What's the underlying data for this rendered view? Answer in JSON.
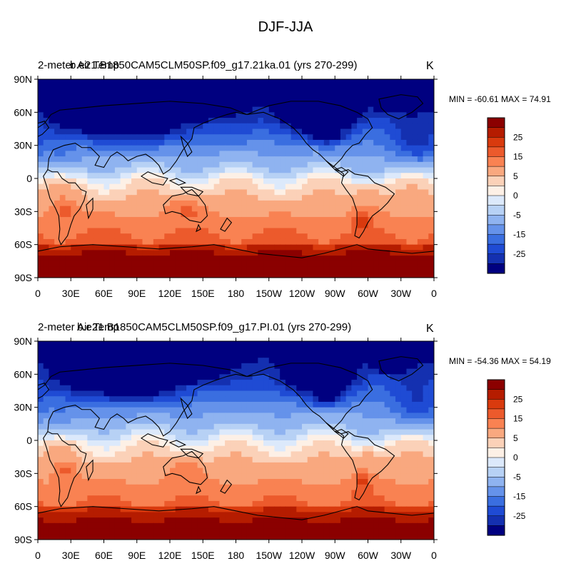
{
  "figure": {
    "title": "DJF-JJA",
    "units": "K",
    "lat_ticks": [
      "90N",
      "60N",
      "30N",
      "0",
      "30S",
      "60S",
      "90S"
    ],
    "lon_ticks": [
      "0",
      "30E",
      "60E",
      "90E",
      "120E",
      "150E",
      "180",
      "150W",
      "120W",
      "90W",
      "60W",
      "30W",
      "0"
    ],
    "colorbar": {
      "labels": [
        "25",
        "15",
        "5",
        "0",
        "-5",
        "-15",
        "-25"
      ],
      "colors": [
        "#8b0000",
        "#b51c00",
        "#d93a0e",
        "#ec5a2c",
        "#f98252",
        "#f9a87f",
        "#fbd1b8",
        "#fdf0e6",
        "#dce9fb",
        "#b7d1f5",
        "#8fb3f0",
        "#6592ea",
        "#3a6ee0",
        "#1f4bd4",
        "#1430b0",
        "#000080"
      ]
    },
    "panels": [
      {
        "left_label": "2-meter Air Temp",
        "case_label": "b.e21.B1850CAM5CLM50SP.f09_g17.21ka.01 (yrs 270-299)",
        "stats": "MIN = -60.61 MAX =  74.91",
        "units": "K",
        "scale": 1.0
      },
      {
        "left_label": "2-meter Air Temp",
        "case_label": "b.e21.B1850CAM5CLM50SP.f09_g17.PI.01 (yrs 270-299)",
        "stats": "MIN = -54.36 MAX =  54.19",
        "units": "K",
        "scale": 0.9
      }
    ]
  }
}
